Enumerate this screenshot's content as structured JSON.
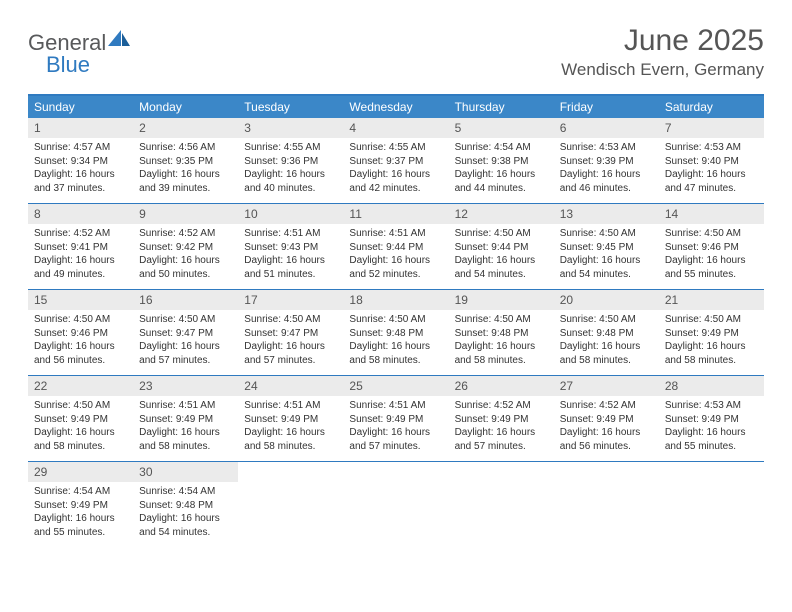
{
  "brand": {
    "word1": "General",
    "word2": "Blue"
  },
  "colors": {
    "accent": "#3b87c8",
    "accent_dark": "#2f7ac0",
    "daynum_bg": "#ebebeb",
    "text": "#555555",
    "body_text": "#333333",
    "white": "#ffffff"
  },
  "header": {
    "month_title": "June 2025",
    "location": "Wendisch Evern, Germany"
  },
  "weekdays": [
    "Sunday",
    "Monday",
    "Tuesday",
    "Wednesday",
    "Thursday",
    "Friday",
    "Saturday"
  ],
  "days": [
    {
      "n": "1",
      "sunrise": "4:57 AM",
      "sunset": "9:34 PM",
      "daylight": "16 hours and 37 minutes."
    },
    {
      "n": "2",
      "sunrise": "4:56 AM",
      "sunset": "9:35 PM",
      "daylight": "16 hours and 39 minutes."
    },
    {
      "n": "3",
      "sunrise": "4:55 AM",
      "sunset": "9:36 PM",
      "daylight": "16 hours and 40 minutes."
    },
    {
      "n": "4",
      "sunrise": "4:55 AM",
      "sunset": "9:37 PM",
      "daylight": "16 hours and 42 minutes."
    },
    {
      "n": "5",
      "sunrise": "4:54 AM",
      "sunset": "9:38 PM",
      "daylight": "16 hours and 44 minutes."
    },
    {
      "n": "6",
      "sunrise": "4:53 AM",
      "sunset": "9:39 PM",
      "daylight": "16 hours and 46 minutes."
    },
    {
      "n": "7",
      "sunrise": "4:53 AM",
      "sunset": "9:40 PM",
      "daylight": "16 hours and 47 minutes."
    },
    {
      "n": "8",
      "sunrise": "4:52 AM",
      "sunset": "9:41 PM",
      "daylight": "16 hours and 49 minutes."
    },
    {
      "n": "9",
      "sunrise": "4:52 AM",
      "sunset": "9:42 PM",
      "daylight": "16 hours and 50 minutes."
    },
    {
      "n": "10",
      "sunrise": "4:51 AM",
      "sunset": "9:43 PM",
      "daylight": "16 hours and 51 minutes."
    },
    {
      "n": "11",
      "sunrise": "4:51 AM",
      "sunset": "9:44 PM",
      "daylight": "16 hours and 52 minutes."
    },
    {
      "n": "12",
      "sunrise": "4:50 AM",
      "sunset": "9:44 PM",
      "daylight": "16 hours and 54 minutes."
    },
    {
      "n": "13",
      "sunrise": "4:50 AM",
      "sunset": "9:45 PM",
      "daylight": "16 hours and 54 minutes."
    },
    {
      "n": "14",
      "sunrise": "4:50 AM",
      "sunset": "9:46 PM",
      "daylight": "16 hours and 55 minutes."
    },
    {
      "n": "15",
      "sunrise": "4:50 AM",
      "sunset": "9:46 PM",
      "daylight": "16 hours and 56 minutes."
    },
    {
      "n": "16",
      "sunrise": "4:50 AM",
      "sunset": "9:47 PM",
      "daylight": "16 hours and 57 minutes."
    },
    {
      "n": "17",
      "sunrise": "4:50 AM",
      "sunset": "9:47 PM",
      "daylight": "16 hours and 57 minutes."
    },
    {
      "n": "18",
      "sunrise": "4:50 AM",
      "sunset": "9:48 PM",
      "daylight": "16 hours and 58 minutes."
    },
    {
      "n": "19",
      "sunrise": "4:50 AM",
      "sunset": "9:48 PM",
      "daylight": "16 hours and 58 minutes."
    },
    {
      "n": "20",
      "sunrise": "4:50 AM",
      "sunset": "9:48 PM",
      "daylight": "16 hours and 58 minutes."
    },
    {
      "n": "21",
      "sunrise": "4:50 AM",
      "sunset": "9:49 PM",
      "daylight": "16 hours and 58 minutes."
    },
    {
      "n": "22",
      "sunrise": "4:50 AM",
      "sunset": "9:49 PM",
      "daylight": "16 hours and 58 minutes."
    },
    {
      "n": "23",
      "sunrise": "4:51 AM",
      "sunset": "9:49 PM",
      "daylight": "16 hours and 58 minutes."
    },
    {
      "n": "24",
      "sunrise": "4:51 AM",
      "sunset": "9:49 PM",
      "daylight": "16 hours and 58 minutes."
    },
    {
      "n": "25",
      "sunrise": "4:51 AM",
      "sunset": "9:49 PM",
      "daylight": "16 hours and 57 minutes."
    },
    {
      "n": "26",
      "sunrise": "4:52 AM",
      "sunset": "9:49 PM",
      "daylight": "16 hours and 57 minutes."
    },
    {
      "n": "27",
      "sunrise": "4:52 AM",
      "sunset": "9:49 PM",
      "daylight": "16 hours and 56 minutes."
    },
    {
      "n": "28",
      "sunrise": "4:53 AM",
      "sunset": "9:49 PM",
      "daylight": "16 hours and 55 minutes."
    },
    {
      "n": "29",
      "sunrise": "4:54 AM",
      "sunset": "9:49 PM",
      "daylight": "16 hours and 55 minutes."
    },
    {
      "n": "30",
      "sunrise": "4:54 AM",
      "sunset": "9:48 PM",
      "daylight": "16 hours and 54 minutes."
    }
  ],
  "labels": {
    "sunrise_prefix": "Sunrise: ",
    "sunset_prefix": "Sunset: ",
    "daylight_prefix": "Daylight: "
  },
  "layout": {
    "columns": 7,
    "rows": 5,
    "trailing_blanks": 5
  }
}
